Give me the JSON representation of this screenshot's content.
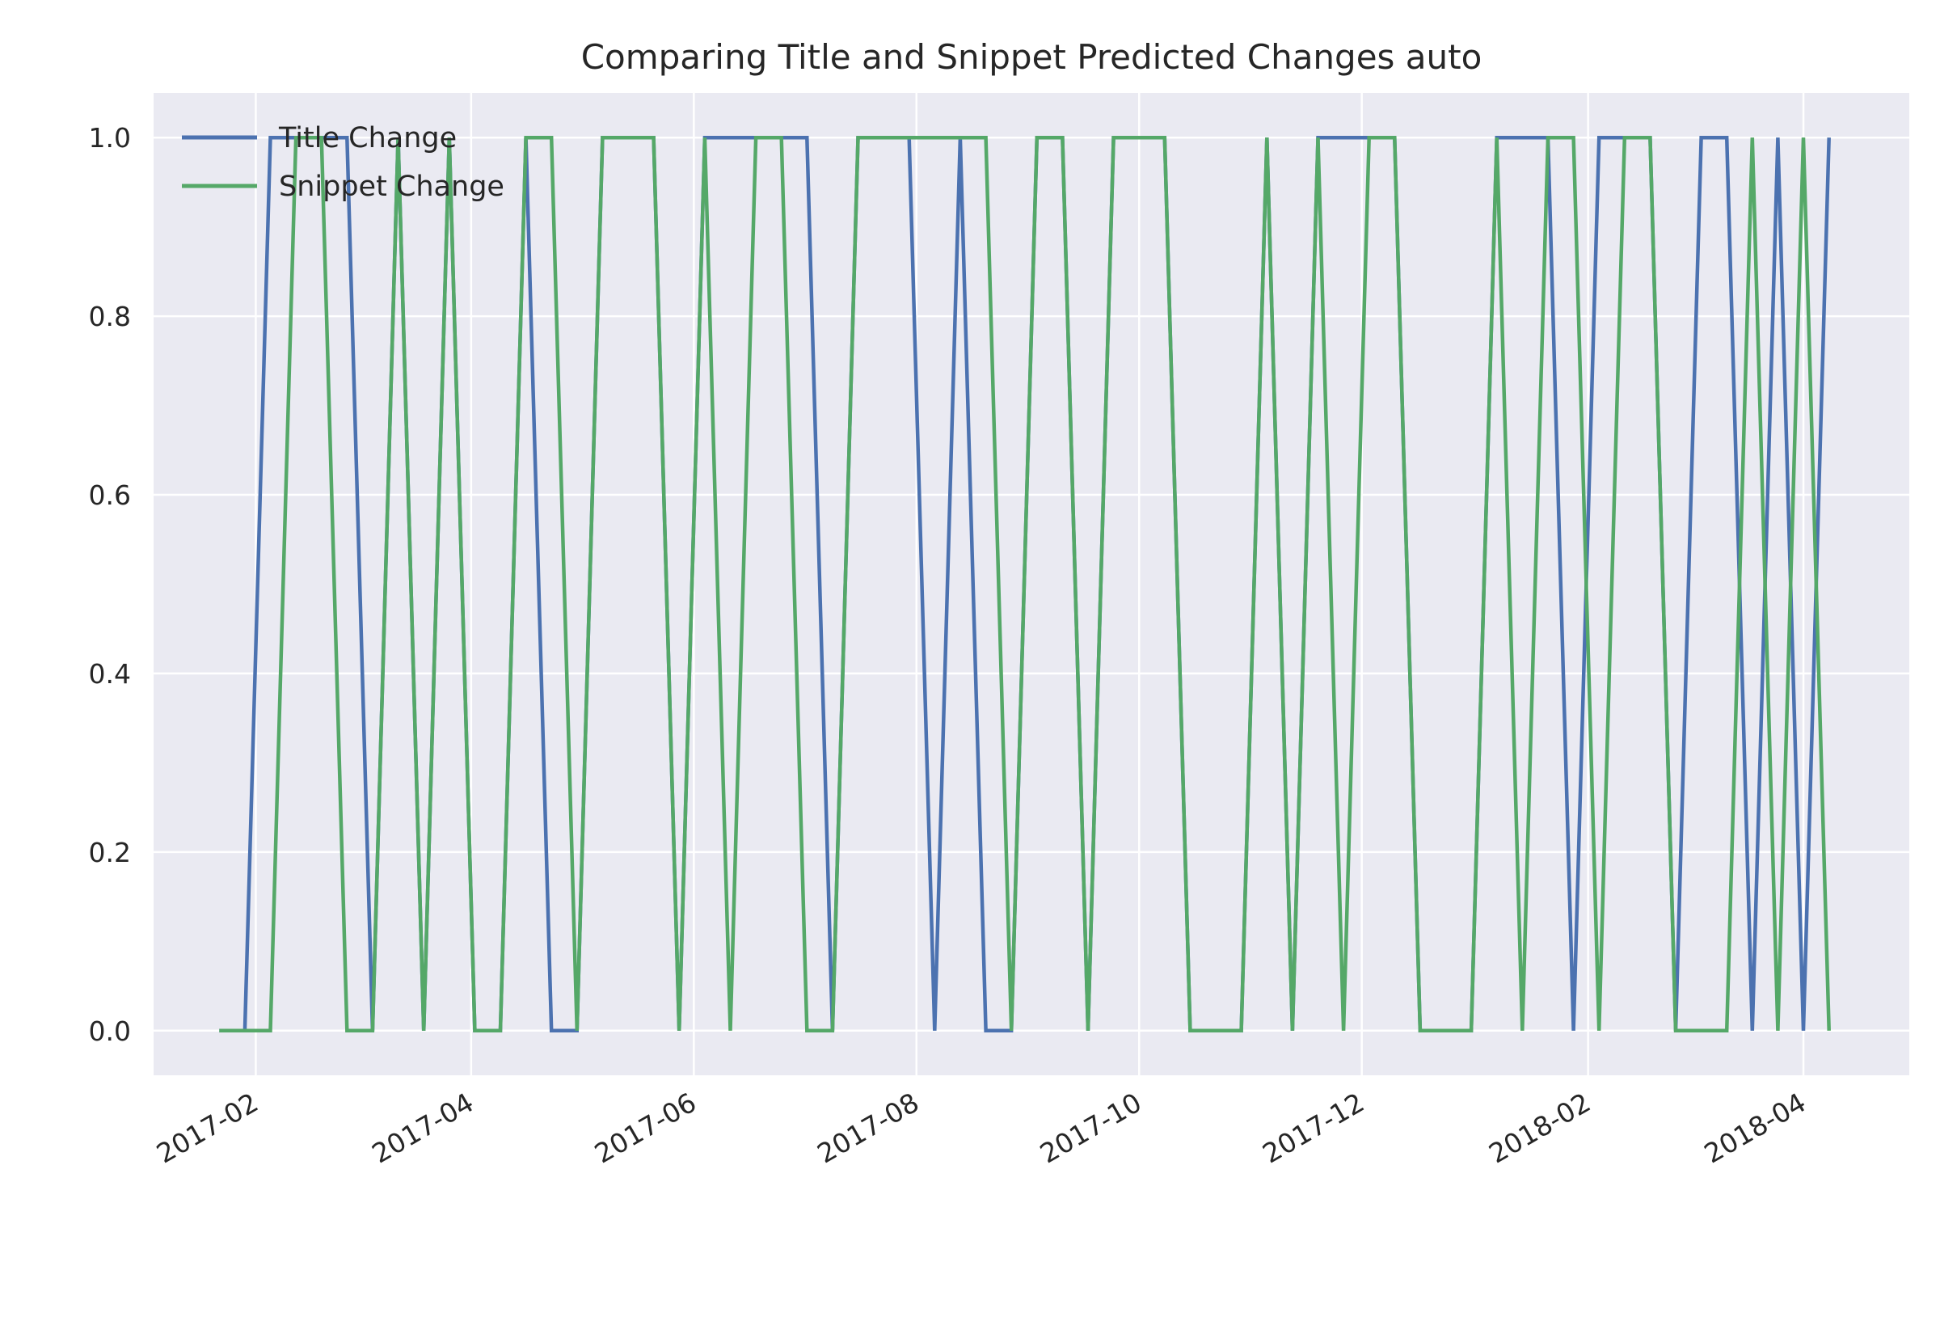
{
  "chart_data": {
    "type": "line",
    "title": "Comparing Title and Snippet Predicted Changes auto",
    "xlabel": "",
    "ylabel": "",
    "xlim": [
      "2017-01-04",
      "2018-04-30"
    ],
    "ylim": [
      -0.05,
      1.05
    ],
    "grid": true,
    "legend_position": "top-left",
    "x_ticks": [
      {
        "date": "2017-02-01",
        "label": "2017-02"
      },
      {
        "date": "2017-04-01",
        "label": "2017-04"
      },
      {
        "date": "2017-06-01",
        "label": "2017-06"
      },
      {
        "date": "2017-08-01",
        "label": "2017-08"
      },
      {
        "date": "2017-10-01",
        "label": "2017-10"
      },
      {
        "date": "2017-12-01",
        "label": "2017-12"
      },
      {
        "date": "2018-02-01",
        "label": "2018-02"
      },
      {
        "date": "2018-04-01",
        "label": "2018-04"
      }
    ],
    "y_ticks": [
      {
        "value": 0.0,
        "label": "0.0"
      },
      {
        "value": 0.2,
        "label": "0.2"
      },
      {
        "value": 0.4,
        "label": "0.4"
      },
      {
        "value": 0.6,
        "label": "0.6"
      },
      {
        "value": 0.8,
        "label": "0.8"
      },
      {
        "value": 1.0,
        "label": "1.0"
      }
    ],
    "x": [
      "2017-01-22",
      "2017-01-29",
      "2017-02-05",
      "2017-02-12",
      "2017-02-19",
      "2017-02-26",
      "2017-03-05",
      "2017-03-12",
      "2017-03-19",
      "2017-03-26",
      "2017-04-02",
      "2017-04-09",
      "2017-04-16",
      "2017-04-23",
      "2017-04-30",
      "2017-05-07",
      "2017-05-14",
      "2017-05-21",
      "2017-05-28",
      "2017-06-04",
      "2017-06-11",
      "2017-06-18",
      "2017-06-25",
      "2017-07-02",
      "2017-07-09",
      "2017-07-16",
      "2017-07-23",
      "2017-07-30",
      "2017-08-06",
      "2017-08-13",
      "2017-08-20",
      "2017-08-27",
      "2017-09-03",
      "2017-09-10",
      "2017-09-17",
      "2017-09-24",
      "2017-10-01",
      "2017-10-08",
      "2017-10-15",
      "2017-10-22",
      "2017-10-29",
      "2017-11-05",
      "2017-11-12",
      "2017-11-19",
      "2017-11-26",
      "2017-12-03",
      "2017-12-10",
      "2017-12-17",
      "2017-12-24",
      "2017-12-31",
      "2018-01-07",
      "2018-01-14",
      "2018-01-21",
      "2018-01-28",
      "2018-02-04",
      "2018-02-11",
      "2018-02-18",
      "2018-02-25",
      "2018-03-04",
      "2018-03-11",
      "2018-03-18",
      "2018-03-25",
      "2018-04-01",
      "2018-04-08"
    ],
    "series": [
      {
        "name": "Title Change",
        "color": "#4c72b0",
        "values": [
          0,
          0,
          1,
          1,
          1,
          1,
          0,
          1,
          0,
          1,
          0,
          0,
          1,
          0,
          0,
          1,
          1,
          1,
          0,
          1,
          1,
          1,
          1,
          1,
          0,
          1,
          1,
          1,
          0,
          1,
          0,
          0,
          1,
          1,
          0,
          1,
          1,
          1,
          0,
          0,
          0,
          1,
          0,
          1,
          1,
          1,
          1,
          0,
          0,
          0,
          1,
          1,
          1,
          0,
          1,
          1,
          1,
          0,
          1,
          1,
          0,
          1,
          0,
          1
        ]
      },
      {
        "name": "Snippet Change",
        "color": "#55a868",
        "values": [
          0,
          0,
          0,
          1,
          1,
          0,
          0,
          1,
          0,
          1,
          0,
          0,
          1,
          1,
          0,
          1,
          1,
          1,
          0,
          1,
          0,
          1,
          1,
          0,
          0,
          1,
          1,
          1,
          1,
          1,
          1,
          0,
          1,
          1,
          0,
          1,
          1,
          1,
          0,
          0,
          0,
          1,
          0,
          1,
          0,
          1,
          1,
          0,
          0,
          0,
          1,
          0,
          1,
          1,
          0,
          1,
          1,
          0,
          0,
          0,
          1,
          0,
          1,
          0
        ]
      }
    ]
  },
  "colors": {
    "plot_background": "#eaeaf2",
    "grid": "#ffffff",
    "text": "#262626"
  }
}
